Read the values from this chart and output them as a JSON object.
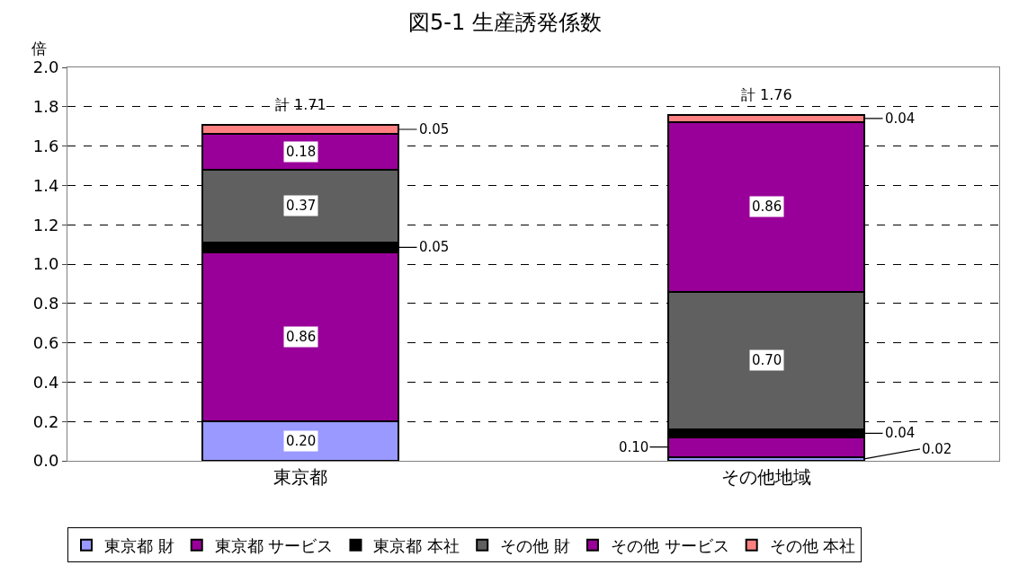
{
  "chart_data": {
    "type": "bar",
    "title": "図5-1 生産誘発係数",
    "ylabel": "倍",
    "categories": [
      "東京都",
      "その他地域"
    ],
    "stacked": true,
    "series": [
      {
        "name": "東京都 財",
        "color": "#9999ff",
        "values": [
          0.2,
          0.02
        ],
        "value_labels": [
          "0.20",
          "0.02"
        ]
      },
      {
        "name": "東京都 サービス",
        "color": "#990099",
        "values": [
          0.86,
          0.1
        ],
        "value_labels": [
          "0.86",
          "0.10"
        ]
      },
      {
        "name": "東京都 本社",
        "color": "#000000",
        "values": [
          0.05,
          0.04
        ],
        "value_labels": [
          "0.05",
          "0.04"
        ]
      },
      {
        "name": "その他 財",
        "color": "#606060",
        "values": [
          0.37,
          0.7
        ],
        "value_labels": [
          "0.37",
          "0.70"
        ]
      },
      {
        "name": "その他 サービス",
        "color": "#990099",
        "values": [
          0.18,
          0.86
        ],
        "value_labels": [
          "0.18",
          "0.86"
        ]
      },
      {
        "name": "その他 本社",
        "color": "#ff8080",
        "values": [
          0.05,
          0.04
        ],
        "value_labels": [
          "0.05",
          "0.04"
        ]
      }
    ],
    "totals": [
      "計 1.71",
      "計 1.76"
    ],
    "ylim": [
      0,
      2.0
    ],
    "yticks": [
      {
        "value": 0,
        "label": "0.0"
      },
      {
        "value": 0.2,
        "label": "0.2"
      },
      {
        "value": 0.4,
        "label": "0.4"
      },
      {
        "value": 0.6,
        "label": "0.6"
      },
      {
        "value": 0.8,
        "label": "0.8"
      },
      {
        "value": 1.0,
        "label": "1.0"
      },
      {
        "value": 1.2,
        "label": "1.2"
      },
      {
        "value": 1.4,
        "label": "1.4"
      },
      {
        "value": 1.6,
        "label": "1.6"
      },
      {
        "value": 1.8,
        "label": "1.8"
      },
      {
        "value": 2.0,
        "label": "2.0"
      }
    ],
    "grid": "y",
    "legend": "bottom"
  }
}
